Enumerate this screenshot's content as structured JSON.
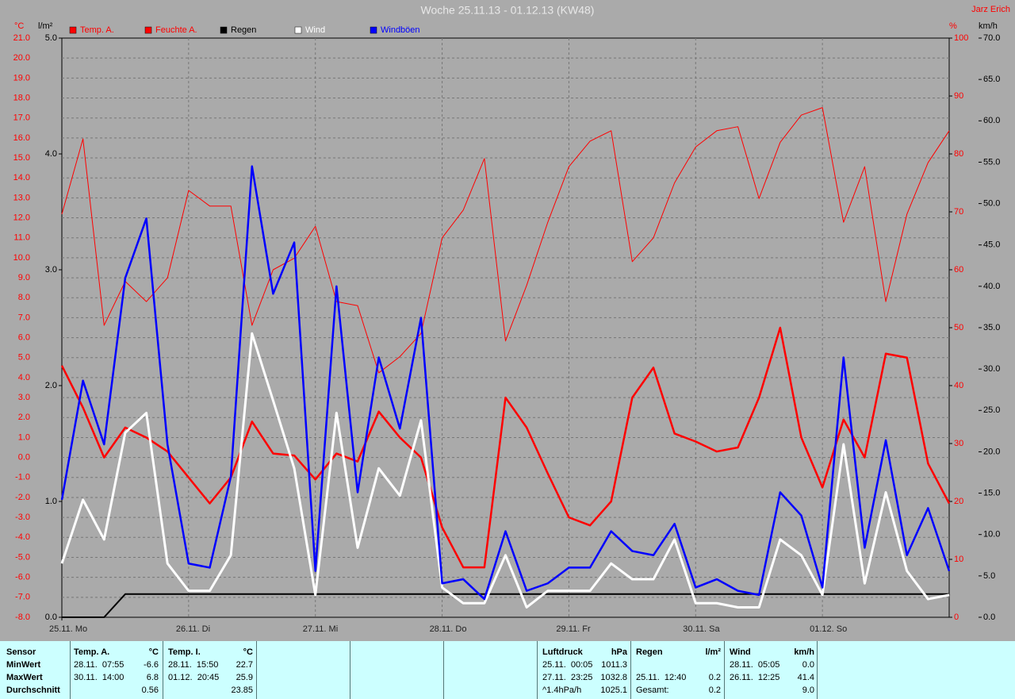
{
  "chart_data": {
    "type": "line",
    "title": "Woche 25.11.13 - 01.12.13 (KW48)",
    "author": "Jarz Erich",
    "ylabel": "°C",
    "y2label": "l/m²",
    "y3label": "%",
    "y4label": "km/h",
    "x": [
      0,
      4,
      8,
      12,
      16,
      20,
      24,
      28,
      32,
      36,
      40,
      44,
      48,
      52,
      56,
      60,
      64,
      68,
      72,
      76,
      80,
      84,
      88,
      92,
      96,
      100,
      104,
      108,
      112,
      116,
      120,
      124,
      128,
      132,
      136,
      140,
      144,
      148,
      152,
      156,
      160,
      164,
      168
    ],
    "xlim": [
      0,
      168
    ],
    "xticks": [
      {
        "value": 0,
        "label": "25.11. Mo"
      },
      {
        "value": 24,
        "label": "26.11. Di"
      },
      {
        "value": 48,
        "label": "27.11. Mi"
      },
      {
        "value": 72,
        "label": "28.11. Do"
      },
      {
        "value": 96,
        "label": "29.11. Fr"
      },
      {
        "value": 120,
        "label": "30.11. Sa"
      },
      {
        "value": 144,
        "label": "01.12. So"
      }
    ],
    "ylim": [
      -8,
      21
    ],
    "yticks": [
      {
        "value": -8,
        "label": "-8.0"
      },
      {
        "value": -7,
        "label": "-7.0"
      },
      {
        "value": -6,
        "label": "-6.0"
      },
      {
        "value": -5,
        "label": "-5.0"
      },
      {
        "value": -4,
        "label": "-4.0"
      },
      {
        "value": -3,
        "label": "-3.0"
      },
      {
        "value": -2,
        "label": "-2.0"
      },
      {
        "value": -1,
        "label": "-1.0"
      },
      {
        "value": 0,
        "label": "0.0"
      },
      {
        "value": 1,
        "label": "1.0"
      },
      {
        "value": 2,
        "label": "2.0"
      },
      {
        "value": 3,
        "label": "3.0"
      },
      {
        "value": 4,
        "label": "4.0"
      },
      {
        "value": 5,
        "label": "5.0"
      },
      {
        "value": 6,
        "label": "6.0"
      },
      {
        "value": 7,
        "label": "7.0"
      },
      {
        "value": 8,
        "label": "8.0"
      },
      {
        "value": 9,
        "label": "9.0"
      },
      {
        "value": 10,
        "label": "10.0"
      },
      {
        "value": 11,
        "label": "11.0"
      },
      {
        "value": 12,
        "label": "12.0"
      },
      {
        "value": 13,
        "label": "13.0"
      },
      {
        "value": 14,
        "label": "14.0"
      },
      {
        "value": 15,
        "label": "15.0"
      },
      {
        "value": 16,
        "label": "16.0"
      },
      {
        "value": 17,
        "label": "17.0"
      },
      {
        "value": 18,
        "label": "18.0"
      },
      {
        "value": 19,
        "label": "19.0"
      },
      {
        "value": 20,
        "label": "20.0"
      },
      {
        "value": 21,
        "label": "21.0"
      }
    ],
    "y2lim": [
      0,
      5
    ],
    "y2ticks": [
      {
        "value": 0,
        "label": "0.0"
      },
      {
        "value": 1,
        "label": "1.0"
      },
      {
        "value": 2,
        "label": "2.0"
      },
      {
        "value": 3,
        "label": "3.0"
      },
      {
        "value": 4,
        "label": "4.0"
      },
      {
        "value": 5,
        "label": "5.0"
      }
    ],
    "y3lim": [
      0,
      100
    ],
    "y3ticks": [
      0,
      10,
      20,
      30,
      40,
      50,
      60,
      70,
      80,
      90,
      100
    ],
    "y4lim": [
      0,
      70
    ],
    "y4ticks": [
      {
        "value": 0,
        "label": "0.0"
      },
      {
        "value": 5,
        "label": "5.0"
      },
      {
        "value": 10,
        "label": "10.0"
      },
      {
        "value": 15,
        "label": "15.0"
      },
      {
        "value": 20,
        "label": "20.0"
      },
      {
        "value": 25,
        "label": "25.0"
      },
      {
        "value": 30,
        "label": "30.0"
      },
      {
        "value": 35,
        "label": "35.0"
      },
      {
        "value": 40,
        "label": "40.0"
      },
      {
        "value": 45,
        "label": "45.0"
      },
      {
        "value": 50,
        "label": "50.0"
      },
      {
        "value": 55,
        "label": "55.0"
      },
      {
        "value": 60,
        "label": "60.0"
      },
      {
        "value": 65,
        "label": "65.0"
      },
      {
        "value": 70,
        "label": "70.0"
      }
    ],
    "grid": true,
    "series": [
      {
        "name": "Temp. A.",
        "color": "#ff0000",
        "axis": "y",
        "width": 2.5,
        "values": [
          4.6,
          2.5,
          0.0,
          1.5,
          1.0,
          0.3,
          -1.0,
          -2.3,
          -1.0,
          1.8,
          0.2,
          0.1,
          -1.1,
          0.2,
          -0.2,
          2.3,
          1.0,
          0.0,
          -3.5,
          -5.5,
          -5.5,
          3.0,
          1.5,
          -0.8,
          -3.0,
          -3.4,
          -2.2,
          3.0,
          4.5,
          1.2,
          0.8,
          0.3,
          0.5,
          3.0,
          6.5,
          1.0,
          -1.5,
          1.9,
          0.0,
          5.2,
          5.0,
          -0.3,
          -2.3
        ]
      },
      {
        "name": "Feuchte A.",
        "color": "#ff0000",
        "axis": "y3",
        "width": 1,
        "values": [
          69.6,
          82.6,
          50.4,
          58,
          54.5,
          58.6,
          73.7,
          71,
          71,
          50.4,
          60,
          62,
          67.5,
          54.5,
          53.8,
          42.2,
          45,
          49,
          65.5,
          70.3,
          79.2,
          47.7,
          57.3,
          68.2,
          77.8,
          82.2,
          84,
          61.4,
          65.5,
          75,
          81.2,
          84,
          84.7,
          72.3,
          82,
          86.7,
          88,
          68.2,
          77.8,
          54.5,
          69.6,
          78.5,
          84
        ]
      },
      {
        "name": "Regen",
        "color": "#000000",
        "axis": "y2",
        "width": 2,
        "values": [
          0,
          0,
          0,
          0.2,
          0.2,
          0.2,
          0.2,
          0.2,
          0.2,
          0.2,
          0.2,
          0.2,
          0.2,
          0.2,
          0.2,
          0.2,
          0.2,
          0.2,
          0.2,
          0.2,
          0.2,
          0.2,
          0.2,
          0.2,
          0.2,
          0.2,
          0.2,
          0.2,
          0.2,
          0.2,
          0.2,
          0.2,
          0.2,
          0.2,
          0.2,
          0.2,
          0.2,
          0.2,
          0.2,
          0.2,
          0.2,
          0.2,
          0.2
        ]
      },
      {
        "name": "Wind",
        "color": "#ffffff",
        "axis": "y4",
        "width": 3,
        "values": [
          6.5,
          14.2,
          9.4,
          22.3,
          24.7,
          6.5,
          3.2,
          3.2,
          7.5,
          34.3,
          26.2,
          18,
          2.7,
          24.7,
          8.4,
          18,
          14.7,
          23.8,
          3.6,
          1.7,
          1.7,
          7.5,
          1.2,
          3.2,
          3.2,
          3.2,
          6.5,
          4.6,
          4.6,
          9.4,
          1.7,
          1.7,
          1.2,
          1.2,
          9.4,
          7.5,
          2.7,
          20.9,
          4.1,
          15.1,
          5.6,
          2.2,
          2.7
        ]
      },
      {
        "name": "Windböen",
        "color": "#0000ff",
        "axis": "y4",
        "width": 2.5,
        "values": [
          14.2,
          28.6,
          20.9,
          41,
          48.2,
          20.9,
          6.5,
          6,
          17,
          54.5,
          39.1,
          45.3,
          5.6,
          40,
          15.1,
          31.4,
          22.8,
          36.2,
          4.1,
          4.6,
          2.2,
          10.4,
          3.2,
          4.1,
          6,
          6,
          10.4,
          8,
          7.5,
          11.3,
          3.6,
          4.6,
          3.2,
          2.7,
          15.1,
          12.3,
          3.6,
          31.4,
          8.4,
          21.4,
          7.5,
          13.2,
          5.6
        ]
      }
    ]
  },
  "table": {
    "row_labels": [
      "Sensor",
      "MinWert",
      "MaxWert",
      "Durchschnitt"
    ],
    "groups": [
      {
        "title": "Temp. A.",
        "unit": "°C",
        "min": [
          "28.11.  07:55",
          "-6.6"
        ],
        "max": [
          "30.11.  14:00",
          "6.8"
        ],
        "avg": [
          "0.56"
        ]
      },
      {
        "title": "Temp. I.",
        "unit": "°C",
        "min": [
          "28.11.  15:50",
          "22.7"
        ],
        "max": [
          "01.12.  20:45",
          "25.9"
        ],
        "avg": [
          "23.85"
        ]
      },
      {
        "title": "Luftdruck",
        "unit": "hPa",
        "min": [
          "25.11.  00:05",
          "1011.3"
        ],
        "max": [
          "27.11.  23:25",
          "1032.8"
        ],
        "avg": [
          "^1.4hPa/h",
          "1025.1"
        ]
      },
      {
        "title": "Regen",
        "unit": "l/m²",
        "min": [],
        "max": [
          "25.11.  12:40",
          "0.2"
        ],
        "avg": [
          "Gesamt:",
          "0.2"
        ]
      },
      {
        "title": "Wind",
        "unit": "km/h",
        "min": [
          "28.11.  05:05",
          "0.0"
        ],
        "max": [
          "26.11.  12:25",
          "41.4"
        ],
        "avg": [
          "9.0"
        ]
      }
    ]
  }
}
